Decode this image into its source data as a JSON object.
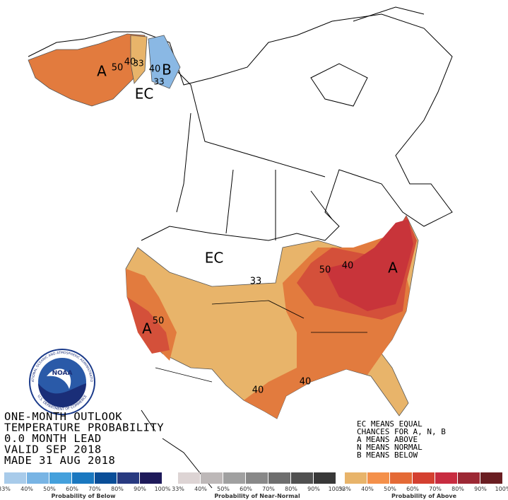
{
  "title_lines": [
    "ONE-MONTH OUTLOOK",
    "TEMPERATURE PROBABILITY",
    "0.0 MONTH LEAD",
    "VALID SEP 2018",
    "MADE 31 AUG 2018"
  ],
  "key_lines": [
    "EC MEANS EQUAL",
    "CHANCES FOR A, N, B",
    "A MEANS ABOVE",
    "N MEANS NORMAL",
    "B MEANS BELOW"
  ],
  "logo": {
    "text": "NOAA",
    "ring_top": "NATIONAL OCEANIC AND ATMOSPHERIC ADMINISTRATION",
    "ring_bottom": "U.S. DEPARTMENT OF COMMERCE"
  },
  "map_labels": [
    "A",
    "50",
    "40",
    "33",
    "B",
    "40",
    "33",
    "EC",
    "EC",
    "33",
    "A",
    "50",
    "50",
    "40",
    "A",
    "40",
    "40"
  ],
  "legend": [
    {
      "title": "Probability of Below",
      "colors": [
        "#a8cbea",
        "#78b4e4",
        "#44a0dc",
        "#1a78c0",
        "#0a4e98",
        "#283a80",
        "#1e1a5a"
      ],
      "ticks": [
        "33%",
        "40%",
        "50%",
        "60%",
        "70%",
        "80%",
        "90%",
        "100%"
      ]
    },
    {
      "title": "Probability of Near-Normal",
      "colors": [
        "#ddd4d4",
        "#bdb8b8",
        "#a0a0a0",
        "#888888",
        "#6e6e6e",
        "#505050",
        "#383838"
      ],
      "ticks": [
        "33%",
        "40%",
        "50%",
        "60%",
        "70%",
        "80%",
        "90%",
        "100%"
      ]
    },
    {
      "title": "Probability of Above",
      "colors": [
        "#e8b46a",
        "#f4904a",
        "#e46a36",
        "#d44030",
        "#c82c40",
        "#9c2834",
        "#6a1e22"
      ],
      "ticks": [
        "33%",
        "40%",
        "50%",
        "60%",
        "70%",
        "80%",
        "90%",
        "100%"
      ]
    }
  ]
}
